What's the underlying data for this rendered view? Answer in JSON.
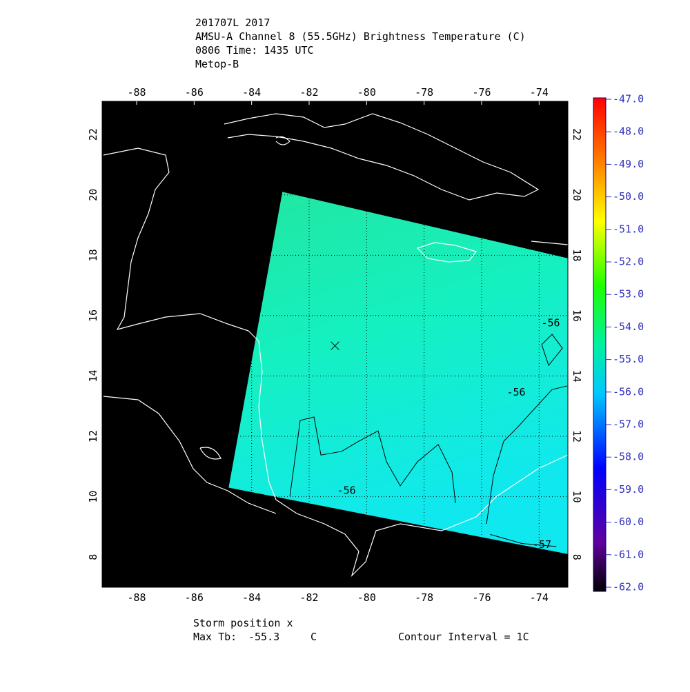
{
  "header": {
    "lines": [
      "201707L 2017",
      "AMSU-A Channel 8 (55.5GHz) Brightness Temperature (C)",
      "0806 Time: 1435 UTC",
      "Metop-B"
    ]
  },
  "map": {
    "xlim": [
      -89.2,
      -73
    ],
    "ylim": [
      7,
      23.1
    ],
    "xticks": [
      -88,
      -86,
      -84,
      -82,
      -80,
      -78,
      -76,
      -74
    ],
    "yticks": [
      8,
      10,
      12,
      14,
      16,
      18,
      20,
      22
    ],
    "swath": [
      [
        -82.93,
        20.1
      ],
      [
        -73,
        17.9
      ],
      [
        -73,
        8.1
      ],
      [
        -84.8,
        10.3
      ]
    ],
    "storm": {
      "lon": -81.1,
      "lat": 15.0
    },
    "contours": [
      {
        "level": -56,
        "label_at": [
          -80.7,
          10.2
        ],
        "points": [
          [
            -82.67,
            10.01
          ],
          [
            -82.31,
            12.53
          ],
          [
            -81.83,
            12.64
          ],
          [
            -81.59,
            11.38
          ],
          [
            -80.87,
            11.5
          ],
          [
            -80.27,
            11.84
          ],
          [
            -79.6,
            12.18
          ],
          [
            -79.31,
            11.16
          ],
          [
            -78.83,
            10.36
          ],
          [
            -78.23,
            11.16
          ],
          [
            -77.51,
            11.73
          ],
          [
            -77.03,
            10.81
          ],
          [
            -76.91,
            9.79
          ]
        ]
      },
      {
        "level": -56,
        "label_at": [
          -74.8,
          13.45
        ],
        "points": [
          [
            -75.83,
            9.1
          ],
          [
            -75.59,
            10.7
          ],
          [
            -75.23,
            11.84
          ],
          [
            -74.75,
            12.3
          ],
          [
            -73.55,
            13.55
          ],
          [
            -73.02,
            13.67
          ]
        ]
      },
      {
        "level": -56,
        "label_at": [
          -73.6,
          15.75
        ],
        "points": [
          [
            -73.91,
            15.04
          ],
          [
            -73.55,
            15.38
          ],
          [
            -73.19,
            14.92
          ],
          [
            -73.67,
            14.35
          ],
          [
            -73.91,
            15.04
          ]
        ]
      },
      {
        "level": -57,
        "label_at": [
          -73.9,
          8.4
        ],
        "points": [
          [
            -75.7,
            8.75
          ],
          [
            -74.6,
            8.45
          ],
          [
            -73.4,
            8.35
          ]
        ]
      }
    ]
  },
  "colorbar": {
    "lim": [
      -62,
      -47
    ],
    "ticks": [
      {
        "value": -47,
        "label": "-47.0"
      },
      {
        "value": -48,
        "label": "-48.0"
      },
      {
        "value": -49,
        "label": "-49.0"
      },
      {
        "value": -50,
        "label": "-50.0"
      },
      {
        "value": -51,
        "label": "-51.0"
      },
      {
        "value": -52,
        "label": "-52.0"
      },
      {
        "value": -53,
        "label": "-53.0"
      },
      {
        "value": -54,
        "label": "-54.0"
      },
      {
        "value": -55,
        "label": "-55.0"
      },
      {
        "value": -56,
        "label": "-56.0"
      },
      {
        "value": -57,
        "label": "-57.0"
      },
      {
        "value": -58,
        "label": "-58.0"
      },
      {
        "value": -59,
        "label": "-59.0"
      },
      {
        "value": -60,
        "label": "-60.0"
      },
      {
        "value": -61,
        "label": "-61.0"
      },
      {
        "value": -62,
        "label": "-62.0"
      }
    ]
  },
  "footer": {
    "storm_label": "Storm position x",
    "max_tb_label": "Max Tb:",
    "max_tb": -55.3,
    "max_tb_unit": "C",
    "contour_interval": "Contour Interval = 1C"
  }
}
